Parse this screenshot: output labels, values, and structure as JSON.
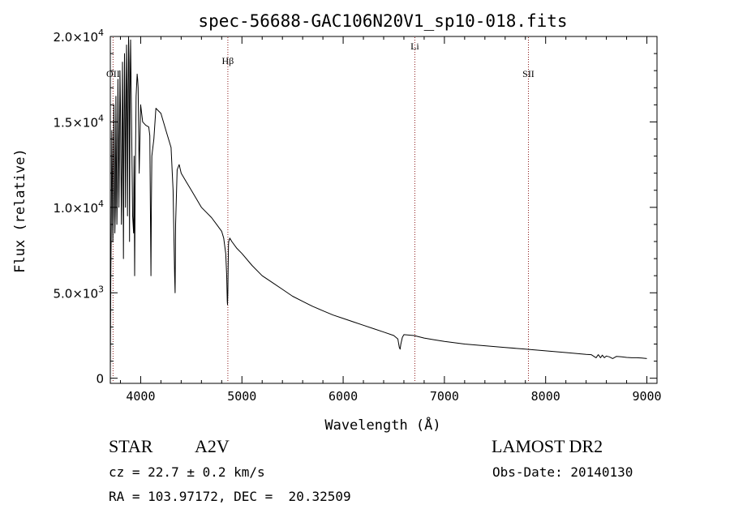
{
  "chart_data": {
    "type": "line",
    "title": "spec-56688-GAC106N20V1_sp10-018.fits",
    "xlabel": "Wavelength (Å)",
    "ylabel": "Flux (relative)",
    "xlim": [
      3700,
      9100
    ],
    "ylim": [
      -300,
      20000
    ],
    "x_ticks": [
      4000,
      5000,
      6000,
      7000,
      8000,
      9000
    ],
    "x_tick_labels": [
      "4000",
      "5000",
      "6000",
      "7000",
      "8000",
      "9000"
    ],
    "y_ticks": [
      0,
      5000,
      10000,
      15000,
      20000
    ],
    "y_tick_labels": [
      {
        "mantissa": "0",
        "exp": ""
      },
      {
        "mantissa": "5.0×10",
        "exp": "3"
      },
      {
        "mantissa": "1.0×10",
        "exp": "4"
      },
      {
        "mantissa": "1.5×10",
        "exp": "4"
      },
      {
        "mantissa": "2.0×10",
        "exp": "4"
      }
    ],
    "grid": false,
    "line_color": "#000000",
    "marker_color": "#8b1a1a",
    "line_markers": [
      {
        "label": "OII",
        "x": 3727
      },
      {
        "label": "Hβ",
        "x": 4861
      },
      {
        "label": "Li",
        "x": 6708
      },
      {
        "label": "SII",
        "x": 7830
      }
    ],
    "series": [
      {
        "x": [
          3700,
          3705,
          3710,
          3715,
          3720,
          3725,
          3730,
          3735,
          3740,
          3745,
          3750,
          3755,
          3760,
          3765,
          3770,
          3775,
          3780,
          3785,
          3790,
          3795,
          3800,
          3810,
          3815,
          3820,
          3825,
          3830,
          3835,
          3840,
          3845,
          3850,
          3855,
          3860,
          3865,
          3870,
          3875,
          3880,
          3885,
          3890,
          3895,
          3900,
          3910,
          3920,
          3930,
          3935,
          3940,
          3945,
          3955,
          3965,
          3970,
          3975,
          3985,
          4000,
          4020,
          4050,
          4080,
          4090,
          4101,
          4105,
          4110,
          4130,
          4150,
          4200,
          4250,
          4300,
          4320,
          4335,
          4340,
          4345,
          4360,
          4380,
          4400,
          4450,
          4500,
          4550,
          4600,
          4650,
          4700,
          4750,
          4800,
          4820,
          4840,
          4850,
          4855,
          4858,
          4861,
          4864,
          4867,
          4870,
          4880,
          4900,
          4950,
          5000,
          5100,
          5200,
          5300,
          5400,
          5500,
          5600,
          5700,
          5800,
          5900,
          6000,
          6100,
          6200,
          6300,
          6400,
          6500,
          6540,
          6555,
          6563,
          6570,
          6585,
          6600,
          6700,
          6800,
          6900,
          7000,
          7200,
          7400,
          7600,
          7800,
          8000,
          8200,
          8400,
          8450,
          8498,
          8520,
          8542,
          8560,
          8580,
          8600,
          8630,
          8662,
          8700,
          8750,
          8800,
          8850,
          8900,
          8950,
          9000
        ],
        "y": [
          200,
          6000,
          9000,
          14500,
          12000,
          8000,
          9500,
          16000,
          13000,
          8500,
          10000,
          16500,
          12500,
          9000,
          11000,
          17500,
          14000,
          10000,
          13000,
          18000,
          16000,
          9000,
          12500,
          18500,
          15000,
          7000,
          13500,
          19000,
          16000,
          10000,
          14500,
          19500,
          17000,
          9500,
          15500,
          20000,
          18500,
          8000,
          16500,
          19800,
          15000,
          9500,
          8500,
          13000,
          6000,
          11000,
          16500,
          17800,
          17500,
          17000,
          12000,
          16000,
          15000,
          14800,
          14700,
          14200,
          6000,
          10000,
          13000,
          14000,
          15800,
          15500,
          14500,
          13500,
          11000,
          6000,
          5000,
          9000,
          12200,
          12500,
          12000,
          11500,
          11000,
          10500,
          10000,
          9700,
          9400,
          9000,
          8600,
          8200,
          7300,
          6000,
          4500,
          4300,
          5000,
          6500,
          7800,
          8000,
          8200,
          8000,
          7600,
          7300,
          6600,
          6000,
          5600,
          5200,
          4800,
          4500,
          4200,
          3950,
          3700,
          3500,
          3300,
          3100,
          2900,
          2700,
          2500,
          2300,
          1800,
          1700,
          2000,
          2400,
          2550,
          2500,
          2350,
          2250,
          2150,
          2000,
          1900,
          1800,
          1700,
          1600,
          1500,
          1400,
          1380,
          1200,
          1380,
          1200,
          1350,
          1200,
          1300,
          1250,
          1150,
          1280,
          1250,
          1220,
          1200,
          1200,
          1180,
          1150
        ]
      }
    ]
  },
  "footer": {
    "object_class": "STAR",
    "subclass": "A2V",
    "survey": "LAMOST DR2",
    "cz_line": "cz = 22.7 ± 0.2 km/s",
    "obs_date": "Obs-Date: 20140130",
    "coords": "RA = 103.97172, DEC =  20.32509"
  }
}
